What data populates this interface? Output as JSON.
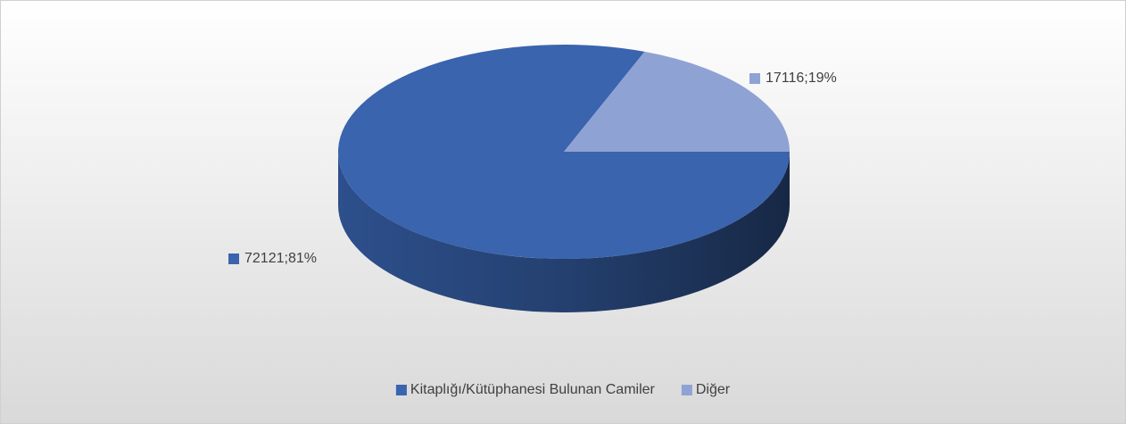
{
  "chart_data": {
    "type": "pie3d",
    "categories": [
      "Kitaplığı/Kütüphanesi Bulunan Camiler",
      "Diğer"
    ],
    "series": [
      {
        "values": [
          72121,
          17116
        ],
        "value_labels": [
          "72121;81%",
          "17116;19%"
        ],
        "colors": [
          "#3a64ad",
          "#8fa2d4"
        ]
      }
    ],
    "legend": "bottom"
  }
}
